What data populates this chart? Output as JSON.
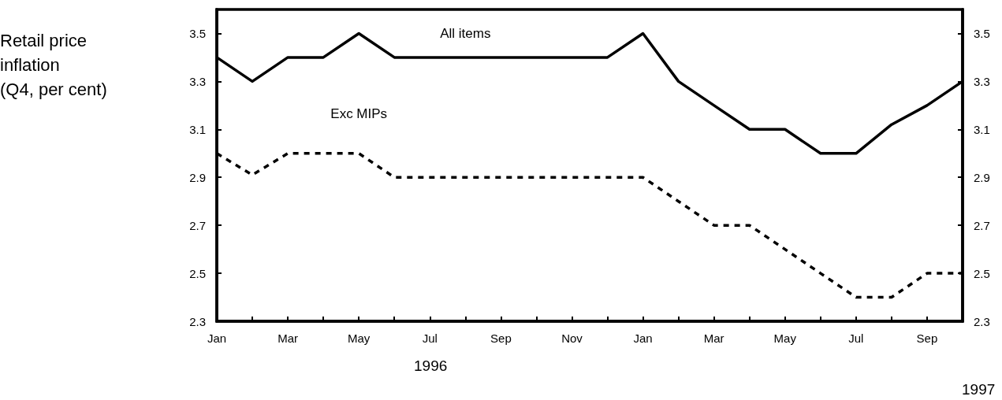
{
  "chart_data": {
    "type": "line",
    "ylabel": "Retail price inflation (Q4, per cent)",
    "categories": [
      "Jan",
      null,
      "Mar",
      null,
      "May",
      null,
      "Jul",
      null,
      "Sep",
      null,
      "Nov",
      null,
      "Jan",
      null,
      "Mar",
      null,
      "May",
      null,
      "Jul",
      null,
      "Sep",
      null
    ],
    "series": [
      {
        "name": "All items",
        "color": "#000000",
        "line_style": "solid",
        "values": [
          3.4,
          3.3,
          3.4,
          3.4,
          3.5,
          3.4,
          3.4,
          3.4,
          3.4,
          3.4,
          3.4,
          3.4,
          3.5,
          3.3,
          3.2,
          3.1,
          3.1,
          3.0,
          3.0,
          3.12,
          3.2,
          3.3
        ]
      },
      {
        "name": "Exc MIPs",
        "color": "#000000",
        "line_style": "dashed",
        "values": [
          3.0,
          2.91,
          3.0,
          3.0,
          3.0,
          2.9,
          2.9,
          2.9,
          2.9,
          2.9,
          2.9,
          2.9,
          2.9,
          2.8,
          2.7,
          2.7,
          2.6,
          2.5,
          2.4,
          2.4,
          2.5,
          2.5
        ]
      }
    ],
    "ylim": [
      2.3,
      3.6
    ],
    "yticks": [
      2.3,
      2.5,
      2.7,
      2.9,
      3.1,
      3.3,
      3.5
    ],
    "y2lim": [
      2.3,
      3.6
    ],
    "y2ticks": [
      2.3,
      2.5,
      2.7,
      2.9,
      3.1,
      3.3,
      3.5
    ],
    "annotations": [
      "1996",
      "1997"
    ],
    "grid": false,
    "legend": false,
    "marker": "none"
  }
}
